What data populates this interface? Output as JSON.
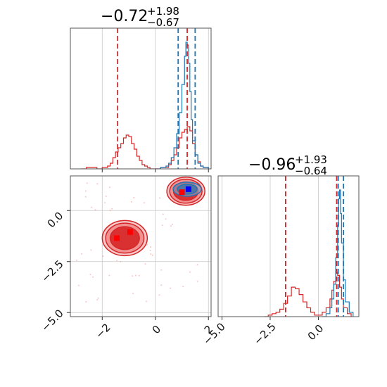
{
  "chart_data": [
    {
      "type": "histogram",
      "panel": "top-left",
      "title": {
        "value": "−0.72",
        "sup": "+1.98",
        "sub": "−0.67"
      },
      "xlim": [
        -3.2,
        2.1
      ],
      "grid": true,
      "series": [
        {
          "color": "#d62728",
          "bins_x": [
            -2.8,
            -2.6,
            -2.4,
            -2.2,
            -2.0,
            -1.8,
            -1.7,
            -1.6,
            -1.5,
            -1.4,
            -1.3,
            -1.2,
            -1.1,
            -1.0,
            -0.9,
            -0.8,
            -0.7,
            -0.6,
            -0.5,
            -0.4,
            -0.3,
            -0.2,
            0.0,
            0.2,
            0.4,
            0.5,
            0.6,
            0.7,
            0.8,
            0.9,
            1.0,
            1.1,
            1.2,
            1.3,
            1.4,
            1.5,
            1.6,
            1.7,
            1.8,
            2.0
          ],
          "values": [
            0,
            1,
            1,
            0,
            1,
            2,
            4,
            8,
            12,
            15,
            18,
            22,
            24,
            23,
            18,
            14,
            9,
            6,
            3,
            2,
            1,
            0,
            0,
            1,
            1,
            3,
            6,
            10,
            15,
            22,
            26,
            28,
            30,
            27,
            18,
            10,
            5,
            2,
            1,
            0
          ]
        },
        {
          "color": "#1f77b4",
          "bins_x": [
            0.0,
            0.2,
            0.4,
            0.5,
            0.6,
            0.7,
            0.8,
            0.9,
            1.0,
            1.1,
            1.15,
            1.2,
            1.25,
            1.3,
            1.35,
            1.4,
            1.5,
            1.6,
            1.7,
            1.8,
            2.0
          ],
          "values": [
            0,
            1,
            2,
            4,
            8,
            15,
            25,
            40,
            60,
            80,
            90,
            88,
            75,
            55,
            35,
            20,
            10,
            4,
            2,
            1,
            0
          ]
        }
      ],
      "vlines": [
        {
          "x": -1.42,
          "color": "#d62728"
        },
        {
          "x": 1.2,
          "color": "#d62728"
        },
        {
          "x": 0.86,
          "color": "#1f77b4"
        },
        {
          "x": 1.5,
          "color": "#1f77b4"
        }
      ]
    },
    {
      "type": "scatter-density",
      "panel": "bottom-left",
      "xlim": [
        -3.2,
        2.1
      ],
      "ylim": [
        -5.2,
        1.7
      ],
      "x_ticks": [
        "−2",
        "0",
        "2"
      ],
      "y_ticks": [
        "0.0",
        "−2.5",
        "−5.0"
      ],
      "grid": true,
      "clusters": [
        {
          "center": [
            -1.15,
            -1.35
          ],
          "color": "#d62728"
        },
        {
          "center": [
            1.15,
            0.95
          ],
          "color": "#d62728"
        },
        {
          "center": [
            1.2,
            1.05
          ],
          "color": "#1f77b4"
        }
      ],
      "markers": [
        {
          "x": -1.45,
          "y": -1.35,
          "color": "#ff0000"
        },
        {
          "x": -0.95,
          "y": -1.05,
          "color": "#ff0000"
        },
        {
          "x": 1.0,
          "y": 0.9,
          "color": "#ff0000"
        },
        {
          "x": 1.25,
          "y": 1.05,
          "color": "#0000ff"
        }
      ]
    },
    {
      "type": "histogram",
      "panel": "bottom-right",
      "title": {
        "value": "−0.96",
        "sup": "+1.93",
        "sub": "−0.64"
      },
      "xlim": [
        -5.2,
        2.1
      ],
      "x_ticks": [
        "−5.0",
        "−2.5",
        "0.0"
      ],
      "grid": true,
      "series": [
        {
          "color": "#d62728",
          "bins_x": [
            -2.8,
            -2.6,
            -2.4,
            -2.2,
            -2.0,
            -1.8,
            -1.6,
            -1.4,
            -1.2,
            -1.0,
            -0.8,
            -0.6,
            -0.4,
            -0.2,
            0.0,
            0.2,
            0.4,
            0.6,
            0.7,
            0.8,
            0.9,
            1.0,
            1.1,
            1.2,
            1.3,
            1.5,
            1.7
          ],
          "values": [
            0,
            1,
            2,
            3,
            5,
            9,
            14,
            20,
            19,
            15,
            10,
            6,
            3,
            1,
            1,
            3,
            6,
            12,
            18,
            24,
            30,
            28,
            20,
            12,
            6,
            2,
            0
          ]
        },
        {
          "color": "#1f77b4",
          "bins_x": [
            0.2,
            0.4,
            0.6,
            0.7,
            0.8,
            0.9,
            1.0,
            1.05,
            1.1,
            1.15,
            1.2,
            1.3,
            1.4,
            1.6,
            1.8
          ],
          "values": [
            0,
            2,
            6,
            12,
            22,
            40,
            62,
            80,
            86,
            70,
            50,
            25,
            10,
            3,
            0
          ]
        }
      ],
      "vlines": [
        {
          "x": -1.7,
          "color": "#d62728"
        },
        {
          "x": 0.95,
          "color": "#d62728"
        },
        {
          "x": 1.03,
          "color": "#1f77b4"
        },
        {
          "x": 1.3,
          "color": "#1f77b4"
        }
      ]
    }
  ]
}
